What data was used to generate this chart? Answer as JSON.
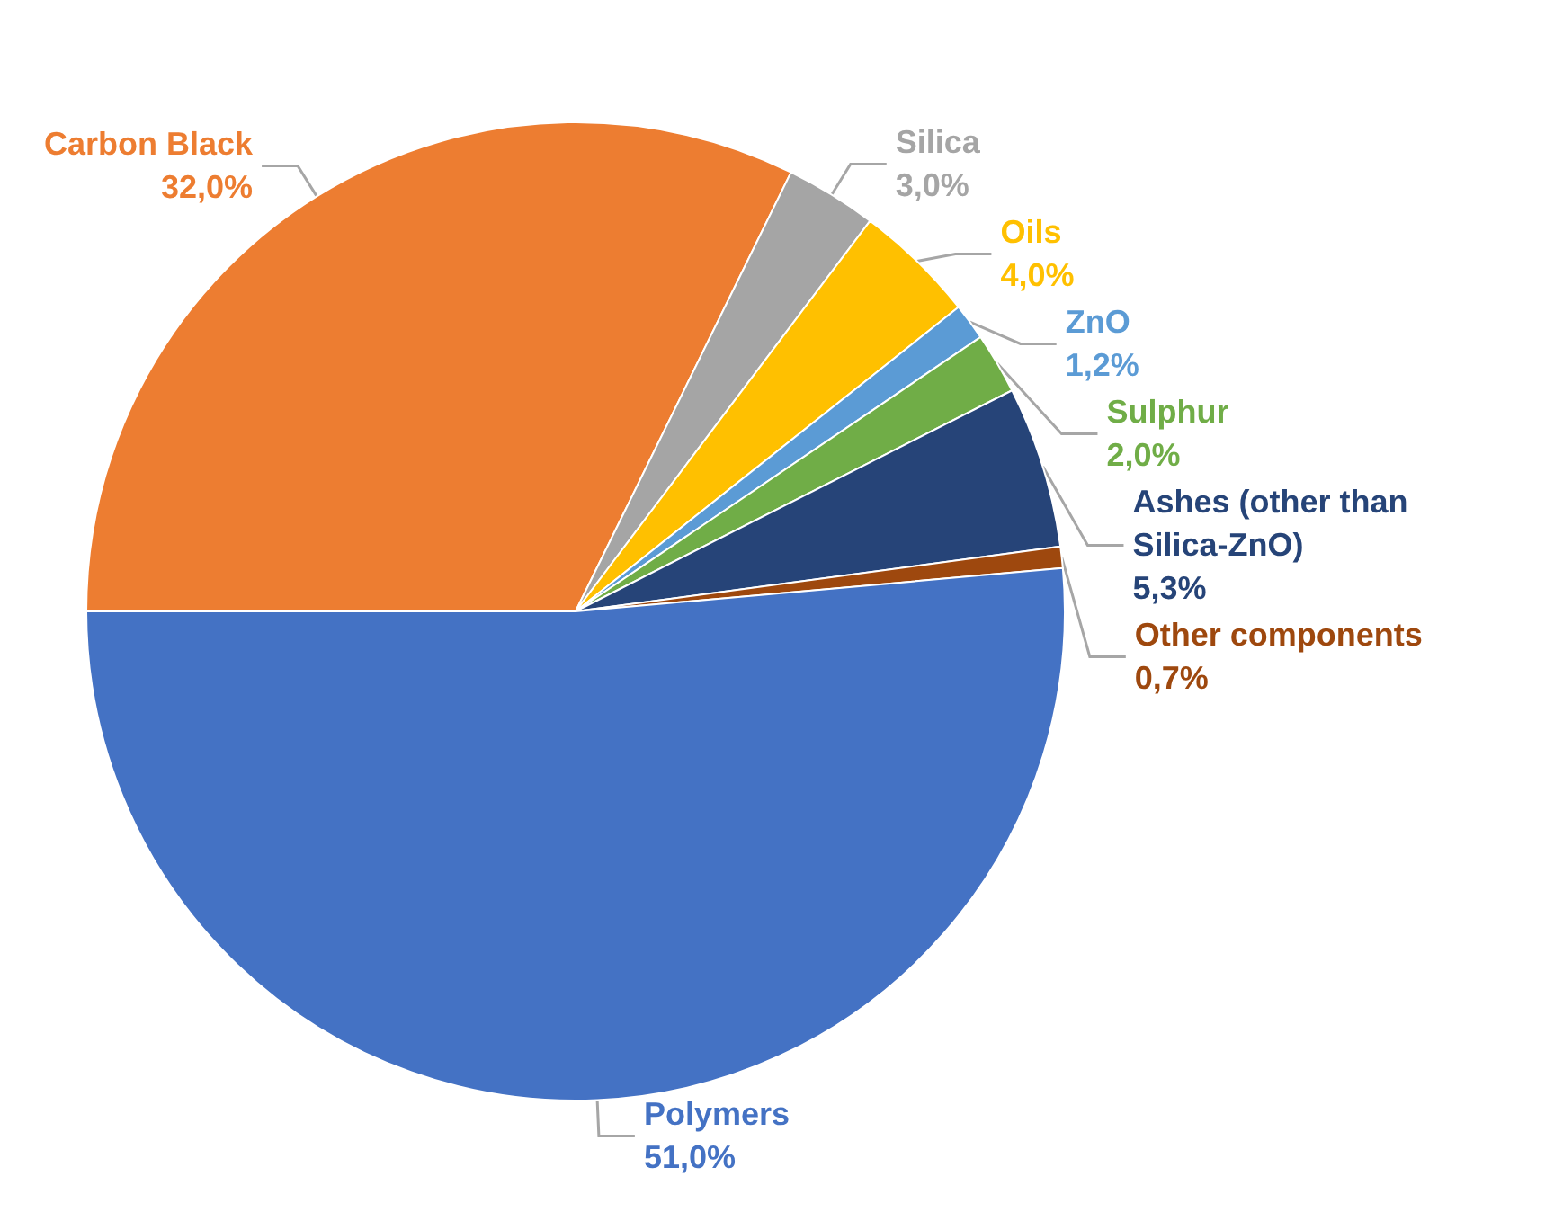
{
  "chart_data": {
    "type": "pie",
    "categories": [
      "Carbon Black",
      "Silica",
      "Oils",
      "ZnO",
      "Sulphur",
      "Ashes (other than Silica-ZnO)",
      "Other components",
      "Polymers"
    ],
    "values": [
      32.0,
      3.0,
      4.0,
      1.2,
      2.0,
      5.3,
      0.7,
      51.0
    ],
    "value_labels": [
      "32,0%",
      "3,0%",
      "4,0%",
      "1,2%",
      "2,0%",
      "5,3%",
      "0,7%",
      "51,0%"
    ],
    "colors": [
      "#ed7d31",
      "#a5a5a5",
      "#ffc000",
      "#5b9bd5",
      "#70ad47",
      "#264478",
      "#9e480e",
      "#4472c4"
    ],
    "legend": false
  }
}
